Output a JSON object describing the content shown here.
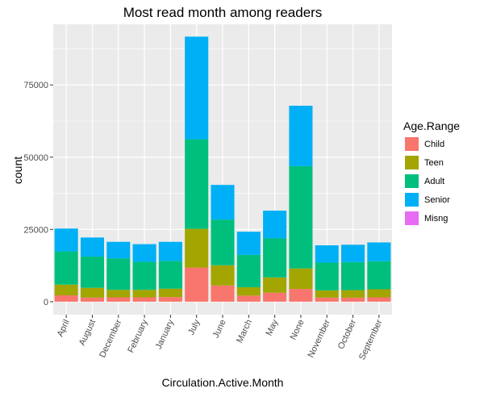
{
  "chart_data": {
    "type": "bar",
    "stacked": true,
    "title": "Most read month among readers",
    "xlabel": "Circulation.Active.Month",
    "ylabel": "count",
    "ylim": [
      -4500,
      96000
    ],
    "yticks": [
      0,
      25000,
      50000,
      75000
    ],
    "ytick_labels": [
      "0",
      "25000",
      "50000",
      "75000"
    ],
    "grid": true,
    "legend_position": "right",
    "legend_title": "Age.Range",
    "categories": [
      "April",
      "August",
      "December",
      "February",
      "January",
      "July",
      "June",
      "March",
      "May",
      "None",
      "November",
      "October",
      "September"
    ],
    "series": [
      {
        "name": "Child",
        "color": "#F8766D",
        "values": [
          2200,
          1400,
          1500,
          1500,
          1600,
          11800,
          5600,
          2100,
          3100,
          4400,
          1400,
          1400,
          1500
        ]
      },
      {
        "name": "Teen",
        "color": "#A3A500",
        "values": [
          3700,
          3400,
          2600,
          2600,
          2900,
          13400,
          7000,
          2900,
          5300,
          7100,
          2500,
          2600,
          2800
        ]
      },
      {
        "name": "Adult",
        "color": "#00BF7D",
        "values": [
          11500,
          10800,
          10900,
          9700,
          9600,
          31000,
          15800,
          11200,
          13500,
          35400,
          9600,
          9700,
          9700
        ]
      },
      {
        "name": "Senior",
        "color": "#00B0F6",
        "values": [
          7900,
          6600,
          5700,
          6100,
          6600,
          35500,
          12000,
          8000,
          9600,
          20900,
          6000,
          6000,
          6500
        ]
      },
      {
        "name": "Misng",
        "color": "#E76BF3",
        "values": [
          0,
          0,
          0,
          0,
          0,
          0,
          0,
          0,
          0,
          0,
          0,
          0,
          0
        ]
      }
    ]
  }
}
